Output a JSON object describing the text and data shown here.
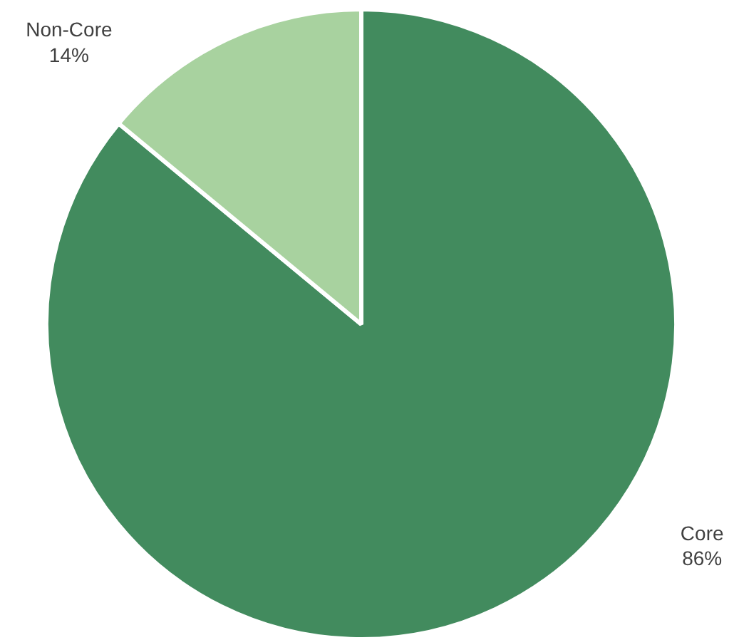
{
  "chart_data": {
    "type": "pie",
    "categories": [
      "Core",
      "Non-Core"
    ],
    "values": [
      86,
      14
    ],
    "colors": [
      "#428b5e",
      "#a8d29f"
    ],
    "value_labels": [
      "86%",
      "14%"
    ]
  }
}
